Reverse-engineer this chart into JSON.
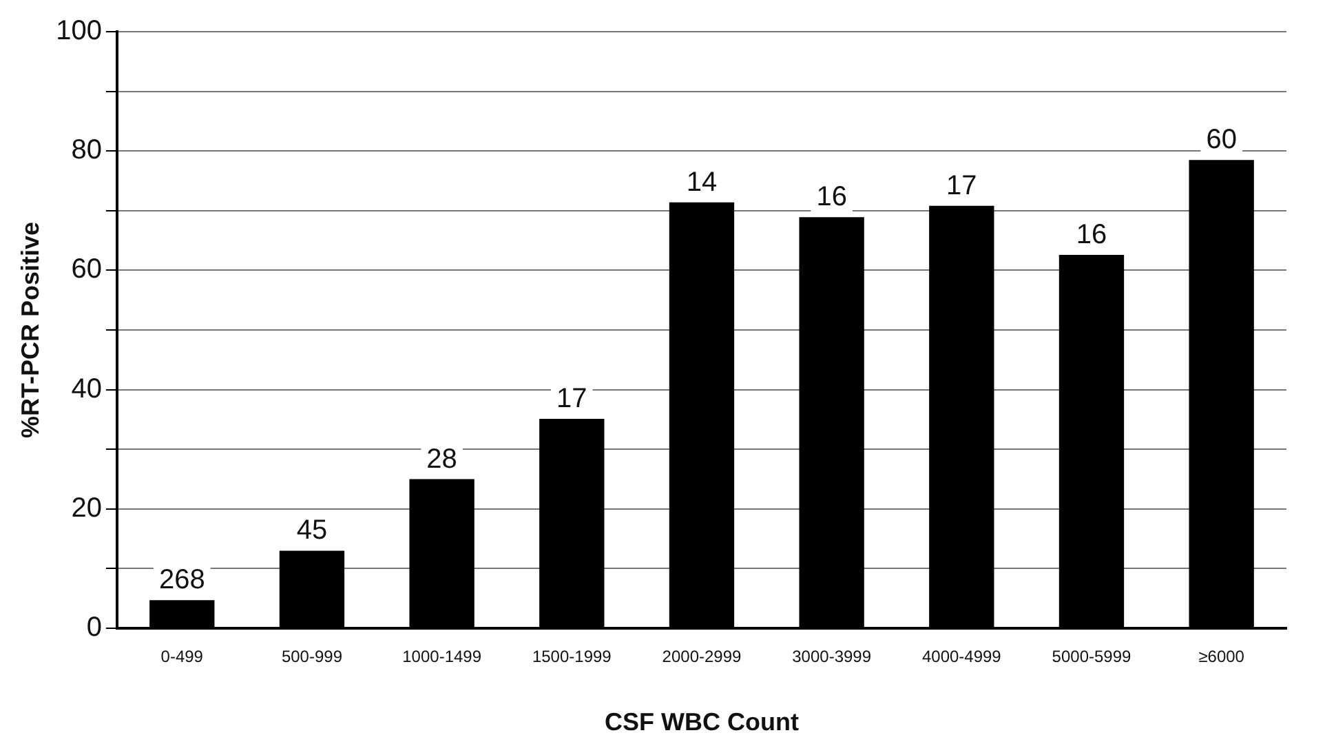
{
  "chart_data": {
    "type": "bar",
    "xlabel": "CSF WBC Count",
    "ylabel": "%RT-PCR Positive",
    "categories": [
      "0-499",
      "500-999",
      "1000-1499",
      "1500-1999",
      "2000-2999",
      "3000-3999",
      "4000-4999",
      "5000-5999",
      "≥6000"
    ],
    "values": [
      4.7,
      13,
      25,
      35.1,
      71.4,
      68.9,
      70.8,
      62.6,
      78.5
    ],
    "color": "#000000",
    "ylim": [
      0,
      100
    ],
    "yticks": [
      0,
      {
        "value": 10,
        "label": null
      },
      20,
      {
        "value": 30,
        "label": null
      },
      40,
      {
        "value": 50,
        "label": null
      },
      60,
      {
        "value": 70,
        "label": null
      },
      80,
      {
        "value": 90,
        "label": null
      },
      100
    ],
    "grid": "y",
    "annotations": [
      {
        "text": "268",
        "x": "0-499",
        "y": 4.7
      },
      {
        "text": "45",
        "x": "500-999",
        "y": 13
      },
      {
        "text": "28",
        "x": "1000-1499",
        "y": 25
      },
      {
        "text": "17",
        "x": "1500-1999",
        "y": 35.1
      },
      {
        "text": "14",
        "x": "2000-2999",
        "y": 71.4
      },
      {
        "text": "16",
        "x": "3000-3999",
        "y": 68.9
      },
      {
        "text": "17",
        "x": "4000-4999",
        "y": 70.8
      },
      {
        "text": "16",
        "x": "5000-5999",
        "y": 62.6
      },
      {
        "text": "60",
        "x": "≥6000",
        "y": 78.5
      }
    ]
  }
}
